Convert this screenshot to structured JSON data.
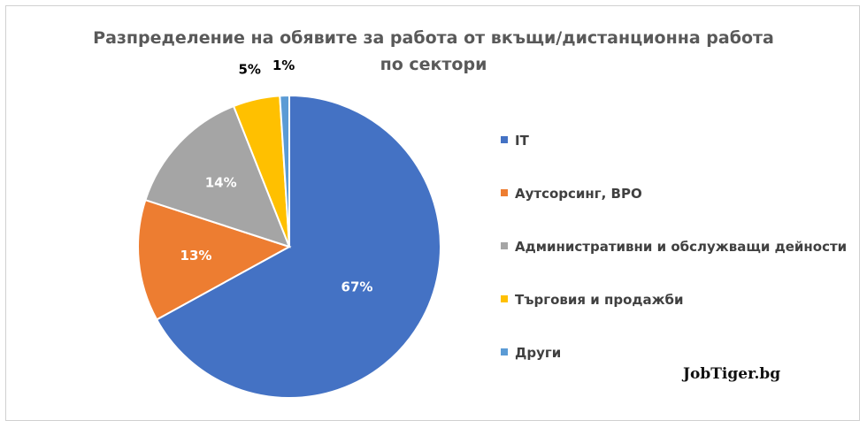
{
  "title_lines": [
    "Разпределение на обявите за работа от вкъщи/дистанционна работа",
    "по сектори"
  ],
  "chart_data": {
    "type": "pie",
    "title": "Разпределение на обявите за работа от вкъщи/дистанционна работа по сектори",
    "labels": [
      "IT",
      "Аутсорсинг, BPO",
      "Административни и обслужващи дейности",
      "Търговия и продажби",
      "Други"
    ],
    "values": [
      67,
      13,
      14,
      5,
      1
    ],
    "value_labels": [
      "67%",
      "13%",
      "14%",
      "5%",
      "1%"
    ],
    "colors": [
      "#4472C4",
      "#ED7D31",
      "#A5A5A5",
      "#FFC000",
      "#5B9BD5"
    ],
    "label_colors": [
      "#ffffff",
      "#ffffff",
      "#ffffff",
      "#000000",
      "#000000"
    ],
    "start": "12 o'clock, clockwise",
    "legend_position": "right"
  },
  "brand": "JobTiger.bg"
}
